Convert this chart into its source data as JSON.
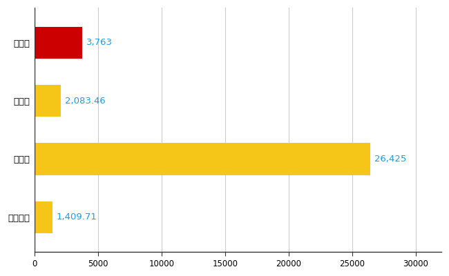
{
  "categories": [
    "宇治市",
    "県平均",
    "県最大",
    "全国平均"
  ],
  "values": [
    3763,
    2083.46,
    26425,
    1409.71
  ],
  "bar_colors": [
    "#cc0000",
    "#f5c518",
    "#f5c518",
    "#f5c518"
  ],
  "value_labels": [
    "3,763",
    "2,083.46",
    "26,425",
    "1,409.71"
  ],
  "xlim": [
    0,
    32000
  ],
  "xticks": [
    0,
    5000,
    10000,
    15000,
    20000,
    25000,
    30000
  ],
  "xtick_labels": [
    "0",
    "5000",
    "10000",
    "15000",
    "20000",
    "25000",
    "30000"
  ],
  "bar_height": 0.55,
  "grid_color": "#cccccc",
  "text_color": "#1a9fe0",
  "label_fontsize": 9.5,
  "tick_fontsize": 8.5,
  "background_color": "#ffffff",
  "fig_width": 6.5,
  "fig_height": 4.0,
  "dpi": 100
}
